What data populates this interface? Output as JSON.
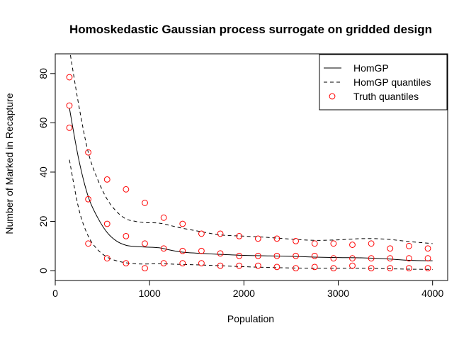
{
  "chart_data": {
    "type": "line",
    "title": "Homoskedastic Gaussian process surrogate on gridded design",
    "xlabel": "Population",
    "ylabel": "Number of Marked in Recapture",
    "xlim": [
      0,
      4160
    ],
    "ylim": [
      -4,
      88
    ],
    "xticks": [
      0,
      1000,
      2000,
      3000,
      4000
    ],
    "yticks": [
      0,
      20,
      40,
      60,
      80
    ],
    "legend": {
      "position": "top-right",
      "entries": [
        {
          "label": "HomGP",
          "style": "solid-line"
        },
        {
          "label": "HomGP quantiles",
          "style": "dashed-line"
        },
        {
          "label": "Truth quantiles",
          "style": "open-circle"
        }
      ]
    },
    "colors": {
      "lines": "#000000",
      "points": "#ff0000"
    },
    "series": [
      {
        "name": "HomGP",
        "style": "solid",
        "x": [
          150,
          250,
          350,
          450,
          550,
          650,
          750,
          850,
          950,
          1100,
          1200,
          1350,
          1550,
          1750,
          2000,
          2250,
          2500,
          2750,
          3000,
          3250,
          3500,
          3750,
          4000
        ],
        "y": [
          66,
          45,
          30,
          21.5,
          15.5,
          12,
          10.3,
          9.8,
          9.6,
          9.3,
          8.5,
          7.5,
          7,
          6.6,
          6.2,
          6,
          5.8,
          5.5,
          5.3,
          5.2,
          4.8,
          4.2,
          4
        ]
      },
      {
        "name": "HomGP quantiles",
        "style": "dashed",
        "x": [
          150,
          250,
          350,
          450,
          550,
          650,
          750,
          850,
          950,
          1100,
          1200,
          1350,
          1550,
          1750,
          2000,
          2250,
          2500,
          2750,
          3000,
          3250,
          3500,
          3750,
          4000
        ],
        "y": [
          90,
          67,
          48,
          37,
          29,
          24,
          21,
          20,
          19.5,
          19.3,
          18.5,
          17.2,
          15.8,
          14.5,
          14,
          13.5,
          12.8,
          12.3,
          12.5,
          13,
          12.8,
          11.8,
          11
        ]
      },
      {
        "name": "HomGP quantiles",
        "style": "dashed",
        "x": [
          150,
          250,
          350,
          450,
          550,
          650,
          750,
          850,
          950,
          1100,
          1200,
          1350,
          1550,
          1750,
          2000,
          2250,
          2500,
          2750,
          3000,
          3250,
          3500,
          3750,
          4000
        ],
        "y": [
          45,
          25,
          14,
          8.5,
          5.5,
          4,
          3.2,
          2.8,
          2.7,
          2.8,
          2.7,
          2.5,
          2.3,
          2,
          1.6,
          1.3,
          1.1,
          1,
          1,
          1,
          0.8,
          0.6,
          0.5
        ]
      },
      {
        "name": "Truth quantiles",
        "style": "points",
        "x": [
          150,
          150,
          150,
          350,
          350,
          350,
          550,
          550,
          550,
          750,
          750,
          750,
          950,
          950,
          950,
          1150,
          1150,
          1150,
          1350,
          1350,
          1350,
          1550,
          1550,
          1550,
          1750,
          1750,
          1750,
          1950,
          1950,
          1950,
          2150,
          2150,
          2150,
          2350,
          2350,
          2350,
          2550,
          2550,
          2550,
          2750,
          2750,
          2750,
          2950,
          2950,
          2950,
          3150,
          3150,
          3150,
          3350,
          3350,
          3350,
          3550,
          3550,
          3550,
          3750,
          3750,
          3750,
          3950,
          3950,
          3950
        ],
        "y": [
          78.5,
          67,
          58,
          48,
          29,
          11,
          37,
          19,
          5,
          33,
          14,
          3,
          27.5,
          11,
          1,
          21.5,
          9,
          3,
          19,
          8,
          3,
          15,
          8,
          3,
          15,
          7,
          2,
          14,
          6,
          2,
          13,
          6,
          2,
          13,
          6,
          1.5,
          12,
          6,
          1,
          11,
          6,
          1.5,
          11,
          5,
          1,
          10.5,
          5,
          2,
          11,
          5,
          1,
          9,
          5,
          1,
          10,
          5,
          1,
          9,
          5,
          1
        ]
      }
    ]
  }
}
